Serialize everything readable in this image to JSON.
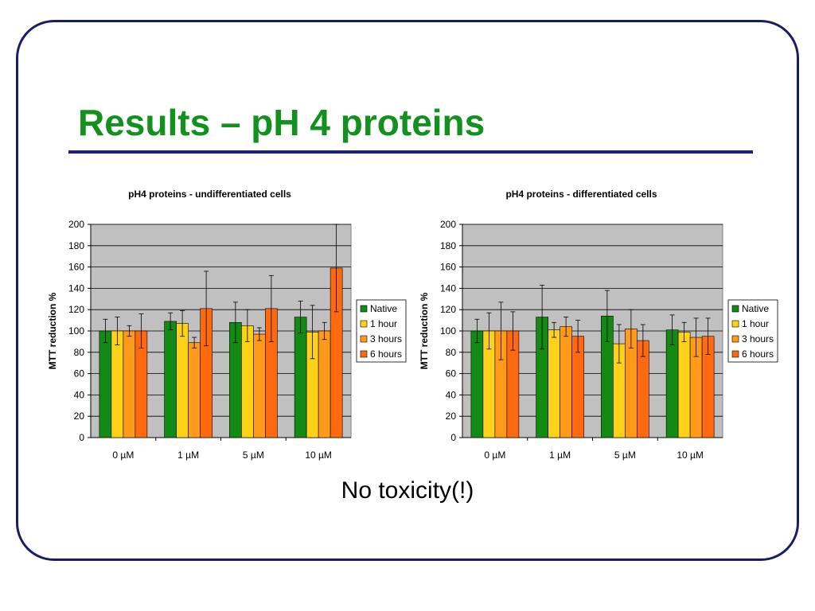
{
  "slide": {
    "title": "Results – pH 4 proteins",
    "caption": "No toxicity(!)"
  },
  "legend": [
    "Native",
    "1 hour",
    "3 hours",
    "6 hours"
  ],
  "colors": [
    "#138a13",
    "#ffd21a",
    "#ff9a1a",
    "#ff6a10"
  ],
  "chart_data": [
    {
      "type": "bar",
      "title": "pH4 proteins - undifferentiated cells",
      "xlabel": "",
      "ylabel": "MTT reduction %",
      "ylim": [
        0,
        200
      ],
      "yticks": [
        0,
        20,
        40,
        60,
        80,
        100,
        120,
        140,
        160,
        180,
        200
      ],
      "grid": true,
      "legend_position": "right",
      "categories": [
        "0 µM",
        "1 µM",
        "5 µM",
        "10 µM"
      ],
      "series": [
        {
          "name": "Native",
          "values": [
            100,
            109,
            108,
            113
          ],
          "errors": [
            11,
            8,
            19,
            15
          ]
        },
        {
          "name": "1 hour",
          "values": [
            100,
            107,
            105,
            99
          ],
          "errors": [
            13,
            12,
            15,
            25
          ]
        },
        {
          "name": "3 hours",
          "values": [
            100,
            89,
            97,
            100
          ],
          "errors": [
            5,
            5,
            6,
            8
          ]
        },
        {
          "name": "6 hours",
          "values": [
            100,
            121,
            121,
            159
          ],
          "errors": [
            16,
            35,
            31,
            41
          ]
        }
      ]
    },
    {
      "type": "bar",
      "title": "pH4 proteins - differentiated cells",
      "xlabel": "",
      "ylabel": "MTT reduction %",
      "ylim": [
        0,
        200
      ],
      "yticks": [
        0,
        20,
        40,
        60,
        80,
        100,
        120,
        140,
        160,
        180,
        200
      ],
      "grid": true,
      "legend_position": "right",
      "categories": [
        "0 µM",
        "1 µM",
        "5 µM",
        "10 µM"
      ],
      "series": [
        {
          "name": "Native",
          "values": [
            100,
            113,
            114,
            101
          ],
          "errors": [
            11,
            30,
            24,
            14
          ]
        },
        {
          "name": "1 hour",
          "values": [
            100,
            101,
            88,
            99
          ],
          "errors": [
            17,
            7,
            18,
            9
          ]
        },
        {
          "name": "3 hours",
          "values": [
            100,
            104,
            102,
            94
          ],
          "errors": [
            27,
            9,
            18,
            18
          ]
        },
        {
          "name": "6 hours",
          "values": [
            100,
            95,
            91,
            95
          ],
          "errors": [
            18,
            15,
            15,
            17
          ]
        }
      ]
    }
  ]
}
